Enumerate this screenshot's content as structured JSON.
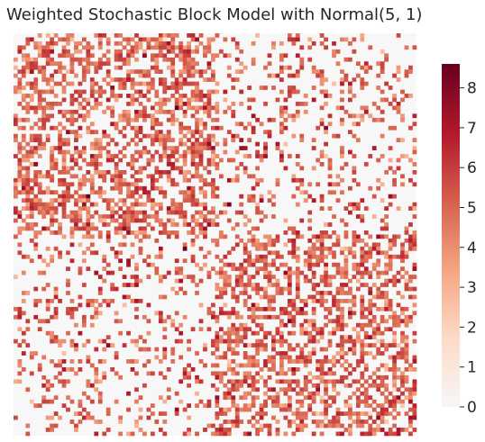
{
  "chart_data": {
    "type": "heatmap",
    "title": "Weighted Stochastic Block Model with Normal(5, 1)",
    "n_nodes": 100,
    "blocks": [
      {
        "name": "",
        "size": 50
      },
      {
        "name": "",
        "size": 50
      }
    ],
    "within_block_edge_probability": 0.5,
    "between_block_edge_probability": 0.2,
    "weight_distribution": {
      "mean": 5,
      "std": 1
    },
    "colorbar": {
      "ticks": [
        0,
        1,
        2,
        3,
        4,
        5,
        6,
        7,
        8
      ],
      "tick_labels": [
        "0",
        "1",
        "2",
        "3",
        "4",
        "5",
        "6",
        "7",
        "8"
      ],
      "vmin": 0,
      "vmax": 8.6
    },
    "colormap": [
      "#f7f7f7",
      "#fddbc7",
      "#f4a582",
      "#d6604d",
      "#b2182b",
      "#67001f"
    ],
    "xlabel": "",
    "ylabel": ""
  }
}
